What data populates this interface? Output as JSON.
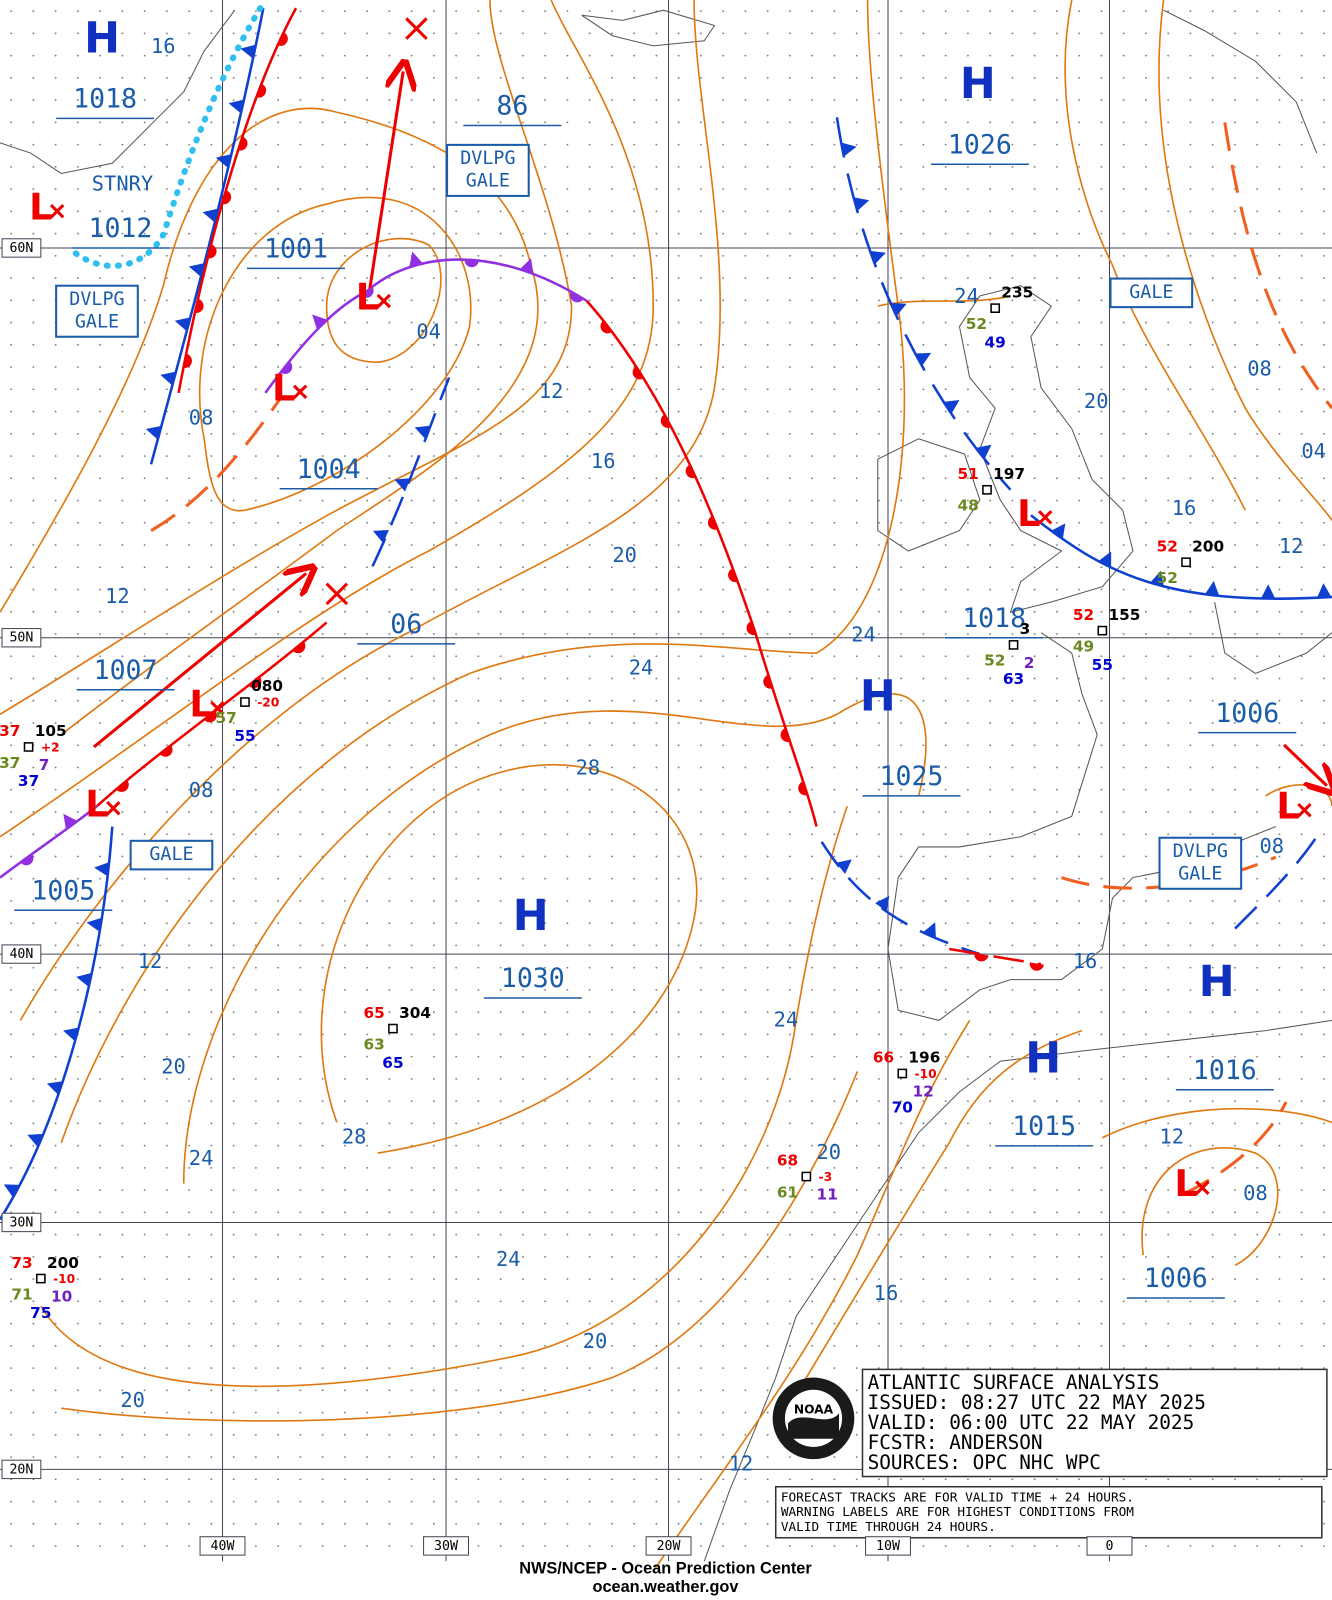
{
  "centers": [
    {
      "symbol": "H",
      "value": "1018"
    },
    {
      "symbol": "L",
      "value": "1012",
      "note": "STNRY"
    },
    {
      "symbol": "L",
      "value": "1001"
    },
    {
      "symbol": "L",
      "value": "1004"
    },
    {
      "value": "86"
    },
    {
      "symbol": "L",
      "value": "1007"
    },
    {
      "symbol": "L",
      "value": "1005"
    },
    {
      "value": "06"
    },
    {
      "symbol": "H",
      "value": "1030"
    },
    {
      "symbol": "H",
      "value": "1026"
    },
    {
      "symbol": "H",
      "value": "1025"
    },
    {
      "symbol": "L",
      "value": "1018"
    },
    {
      "symbol": "L",
      "value": "1006"
    },
    {
      "symbol": "H",
      "value": "1015"
    },
    {
      "symbol": "H",
      "value": "1016"
    },
    {
      "symbol": "L",
      "value": "1006"
    }
  ],
  "isobar_labels": [
    "16",
    "08",
    "04",
    "12",
    "16",
    "20",
    "24",
    "28",
    "12",
    "08",
    "12",
    "20",
    "24",
    "28",
    "24",
    "20",
    "20",
    "24",
    "20",
    "16",
    "12",
    "24",
    "24",
    "20",
    "16",
    "12",
    "08",
    "04",
    "16",
    "12",
    "08",
    "08"
  ],
  "warnings": [
    [
      "DVLPG",
      "GALE"
    ],
    [
      "DVLPG",
      "GALE"
    ],
    [
      "GALE"
    ],
    [
      "GALE"
    ],
    [
      "DVLPG",
      "GALE"
    ]
  ],
  "stations": [
    [
      "65",
      "304",
      "63",
      "65"
    ],
    [
      "080",
      "-20",
      "57",
      "55"
    ],
    [
      "37",
      "105",
      "+2",
      "37",
      "7",
      "37"
    ],
    [
      "235",
      "52",
      "49"
    ],
    [
      "51",
      "197",
      "48"
    ],
    [
      "52",
      "200",
      "52"
    ],
    [
      "52",
      "155",
      "49",
      "55"
    ],
    [
      "3",
      "52",
      "2",
      "63"
    ],
    [
      "66",
      "196",
      "-10",
      "12",
      "70"
    ],
    [
      "68",
      "-3",
      "61",
      "11"
    ],
    [
      "73",
      "200",
      "-10",
      "71",
      "10",
      "75"
    ]
  ],
  "latitudes": [
    "60N",
    "50N",
    "40N",
    "30N",
    "20N"
  ],
  "longitudes": [
    "40W",
    "30W",
    "20W",
    "10W",
    "0"
  ],
  "title_box": [
    "ATLANTIC SURFACE ANALYSIS",
    "ISSUED: 08:27 UTC 22 MAY 2025",
    "VALID:  06:00 UTC 22 MAY 2025",
    "FCSTR:  ANDERSON",
    "SOURCES: OPC NHC WPC"
  ],
  "note": [
    "FORECAST TRACKS ARE FOR VALID TIME + 24 HOURS.",
    "WARNING LABELS ARE FOR HIGHEST CONDITIONS FROM",
    "VALID TIME THROUGH 24 HOURS."
  ],
  "logo": "NOAA",
  "footer": [
    "NWS/NCEP - Ocean Prediction Center",
    "ocean.weather.gov"
  ]
}
